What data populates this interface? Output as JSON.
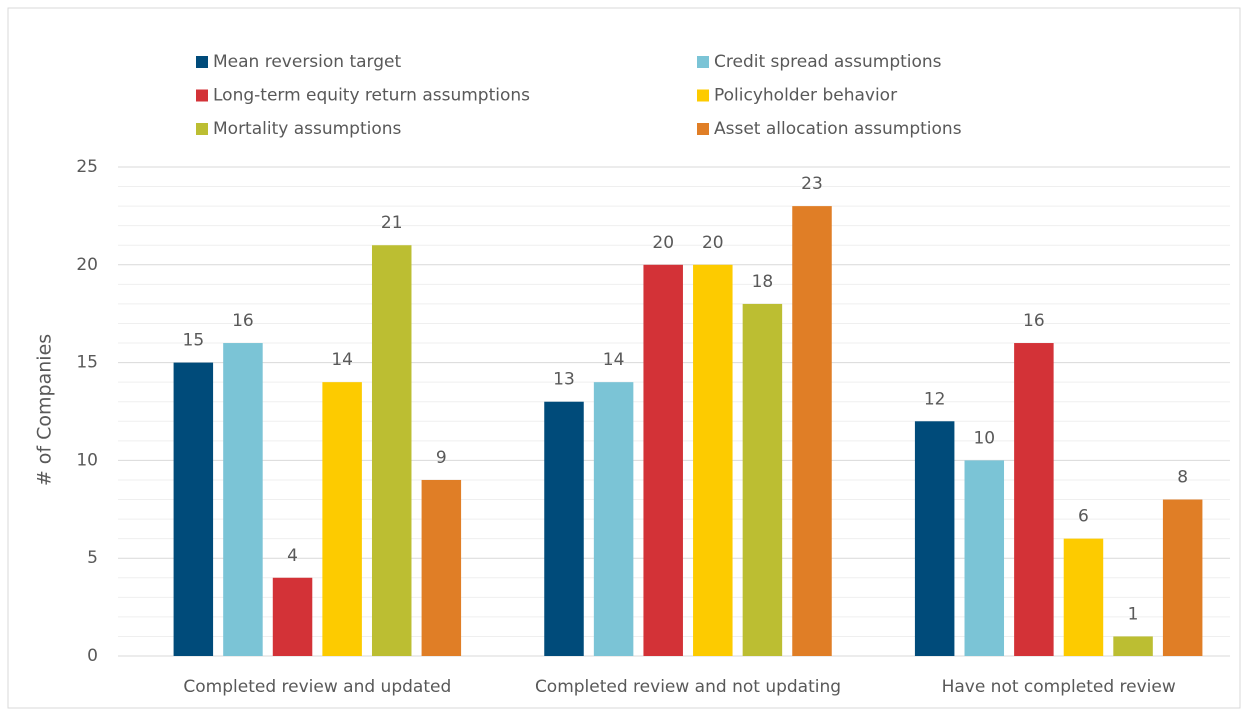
{
  "chart_data": {
    "type": "bar",
    "y_label": "# of Companies",
    "categories": [
      "Completed review and updated",
      "Completed review and not updating",
      "Have not completed review"
    ],
    "series": [
      {
        "name": "Mean reversion target",
        "color": "#004b7a",
        "values": [
          15,
          13,
          12
        ]
      },
      {
        "name": "Credit spread assumptions",
        "color": "#7bc4d6",
        "values": [
          16,
          14,
          10
        ]
      },
      {
        "name": "Long-term equity return assumptions",
        "color": "#d33237",
        "values": [
          4,
          20,
          16
        ]
      },
      {
        "name": "Policyholder behavior",
        "color": "#fdcb00",
        "values": [
          14,
          20,
          6
        ]
      },
      {
        "name": "Mortality assumptions",
        "color": "#bcbe32",
        "values": [
          21,
          18,
          1
        ]
      },
      {
        "name": "Asset allocation assumptions",
        "color": "#e07e26",
        "values": [
          9,
          23,
          8
        ]
      }
    ],
    "ylim": [
      0,
      25
    ],
    "yticks": [
      0,
      5,
      10,
      15,
      20,
      25
    ],
    "minor_yticks": [
      1,
      2,
      3,
      4,
      6,
      7,
      8,
      9,
      11,
      12,
      13,
      14,
      16,
      17,
      18,
      19,
      21,
      22,
      23,
      24
    ],
    "grid": true,
    "legend": "top"
  }
}
